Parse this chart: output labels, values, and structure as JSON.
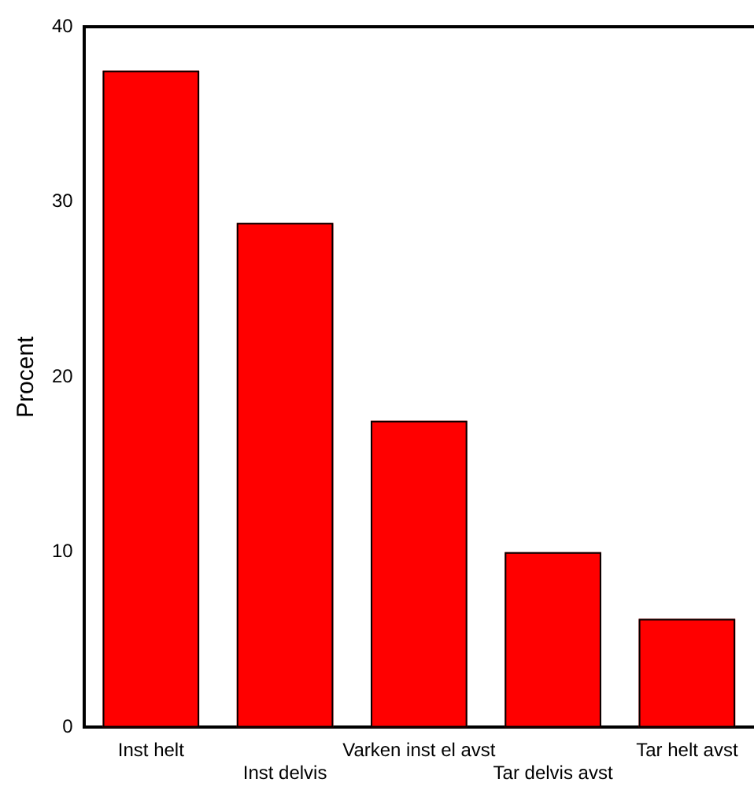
{
  "chart_data": {
    "type": "bar",
    "ylabel": "Procent",
    "categories": [
      "Inst helt",
      "Inst delvis",
      "Varken inst el avst",
      "Tar delvis avst",
      "Tar helt avst"
    ],
    "values": [
      37.5,
      28.8,
      17.5,
      10.0,
      6.2
    ],
    "color": "#ff0000",
    "ylim": [
      0,
      40
    ],
    "yticks": [
      0,
      10,
      20,
      30,
      40
    ],
    "grid": false,
    "legend": false
  }
}
